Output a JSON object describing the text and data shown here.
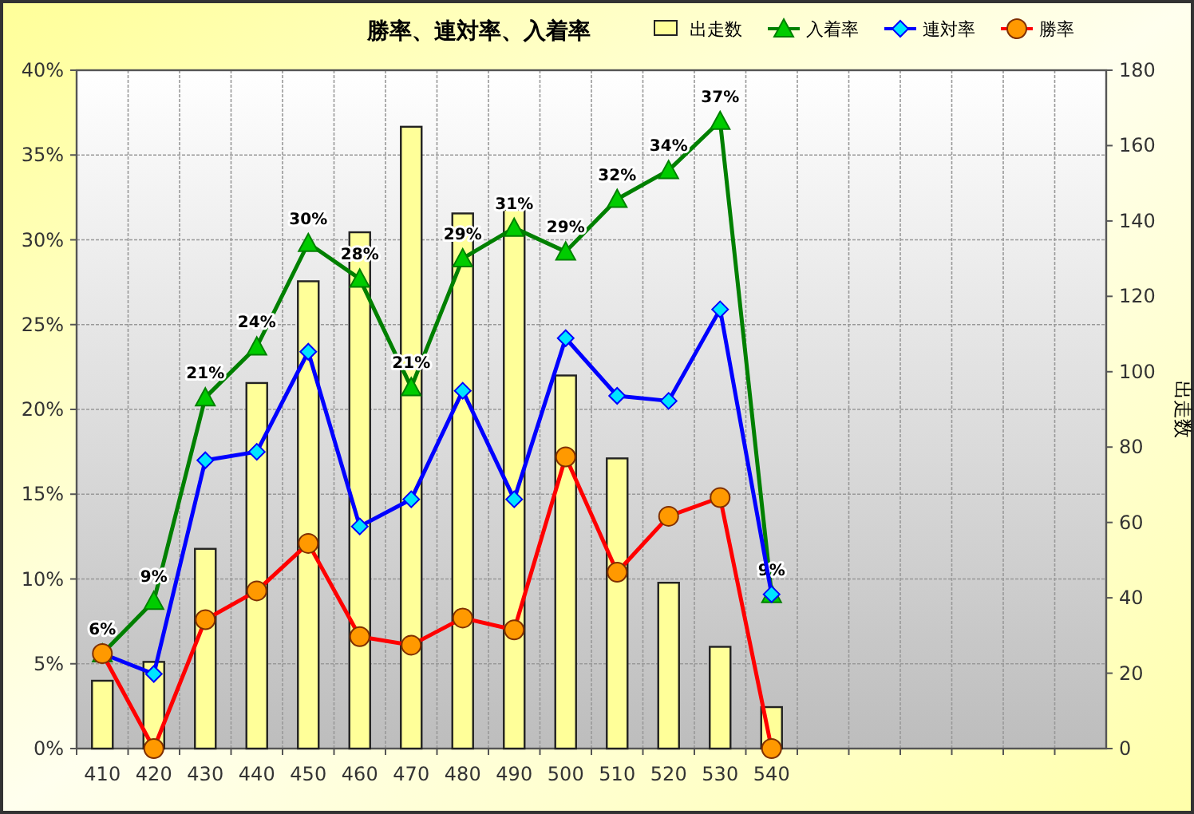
{
  "chart_data": {
    "type": "line",
    "title": "勝率、連対率、入着率",
    "y2label": "出走数",
    "categories": [
      "410",
      "420",
      "430",
      "440",
      "450",
      "460",
      "470",
      "480",
      "490",
      "500",
      "510",
      "520",
      "530",
      "540",
      null,
      null,
      null,
      null,
      null,
      null
    ],
    "series": [
      {
        "name": "出走数",
        "type": "bar",
        "axis": "y2",
        "color": "#ffff99",
        "values": [
          18,
          23,
          53,
          97,
          124,
          137,
          165,
          142,
          143,
          99,
          77,
          44,
          27,
          11,
          null,
          null,
          null,
          null,
          null,
          null
        ]
      },
      {
        "name": "入着率",
        "color": "#008000",
        "marker": "triangle",
        "values": [
          5.6,
          8.7,
          20.7,
          23.7,
          29.8,
          27.7,
          21.3,
          28.9,
          30.7,
          29.3,
          32.4,
          34.1,
          37.0,
          9.1,
          null,
          null,
          null,
          null,
          null,
          null
        ],
        "value_labels": [
          "6%",
          "9%",
          "21%",
          "24%",
          "30%",
          "28%",
          "21%",
          "29%",
          "31%",
          "29%",
          "32%",
          "34%",
          "37%",
          "9%",
          null,
          null,
          null,
          null,
          null,
          null
        ]
      },
      {
        "name": "連対率",
        "color": "#0000ff",
        "marker": "diamond",
        "values": [
          5.6,
          4.4,
          17.0,
          17.5,
          23.4,
          13.1,
          14.7,
          21.1,
          14.7,
          24.2,
          20.8,
          20.5,
          25.9,
          9.1,
          null,
          null,
          null,
          null,
          null,
          null
        ]
      },
      {
        "name": "勝率",
        "color": "#ff0000",
        "marker": "circle",
        "values": [
          5.6,
          0,
          7.6,
          9.3,
          12.1,
          6.6,
          6.1,
          7.7,
          7.0,
          17.2,
          10.4,
          13.7,
          14.8,
          0,
          null,
          null,
          null,
          null,
          null,
          null
        ]
      }
    ],
    "ylim": [
      0,
      40
    ],
    "yticks": [
      {
        "value": 0,
        "label": "0%"
      },
      {
        "value": 5,
        "label": "5%"
      },
      {
        "value": 10,
        "label": "10%"
      },
      {
        "value": 15,
        "label": "15%"
      },
      {
        "value": 20,
        "label": "20%"
      },
      {
        "value": 25,
        "label": "25%"
      },
      {
        "value": 30,
        "label": "30%"
      },
      {
        "value": 35,
        "label": "35%"
      },
      {
        "value": 40,
        "label": "40%"
      }
    ],
    "y2lim": [
      0,
      180
    ],
    "y2ticks": [
      0,
      20,
      40,
      60,
      80,
      100,
      120,
      140,
      160,
      180
    ],
    "grid": true,
    "legend": "top right"
  }
}
